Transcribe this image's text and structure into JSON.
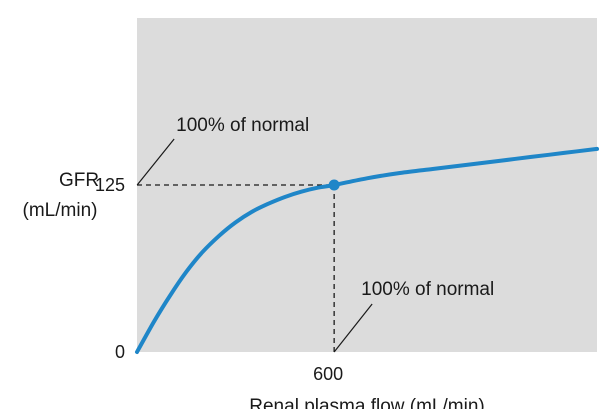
{
  "chart_data": {
    "type": "line",
    "xlabel": "Renal plasma flow (mL/min)",
    "ylabel_lines": [
      "GFR",
      "(mL/min)"
    ],
    "x_ticks": [
      600
    ],
    "y_ticks": [
      0,
      125
    ],
    "x_tick_labels": [
      "600"
    ],
    "y_tick_labels": [
      "0",
      "125"
    ],
    "xlim": [
      0,
      1400
    ],
    "ylim": [
      0,
      250
    ],
    "grid": false,
    "colors": {
      "plot_background": "#dcdcdc",
      "curve": "#1f86c8",
      "text": "#1a1a1a"
    },
    "series": [
      {
        "x": [
          0,
          50,
          100,
          150,
          200,
          250,
          300,
          350,
          400,
          450,
          500,
          550,
          600,
          700,
          800,
          900,
          1000,
          1100,
          1200,
          1300,
          1400
        ],
        "y": [
          0,
          22,
          42,
          60,
          75,
          87,
          97,
          105,
          111,
          116,
          120,
          123,
          125,
          130,
          134,
          137,
          140,
          143,
          146,
          149,
          152
        ]
      }
    ],
    "highlight_point": {
      "x": 600,
      "y": 125
    },
    "annotations": [
      {
        "text": "100% of normal",
        "target": "y"
      },
      {
        "text": "100% of normal",
        "target": "x"
      }
    ]
  }
}
